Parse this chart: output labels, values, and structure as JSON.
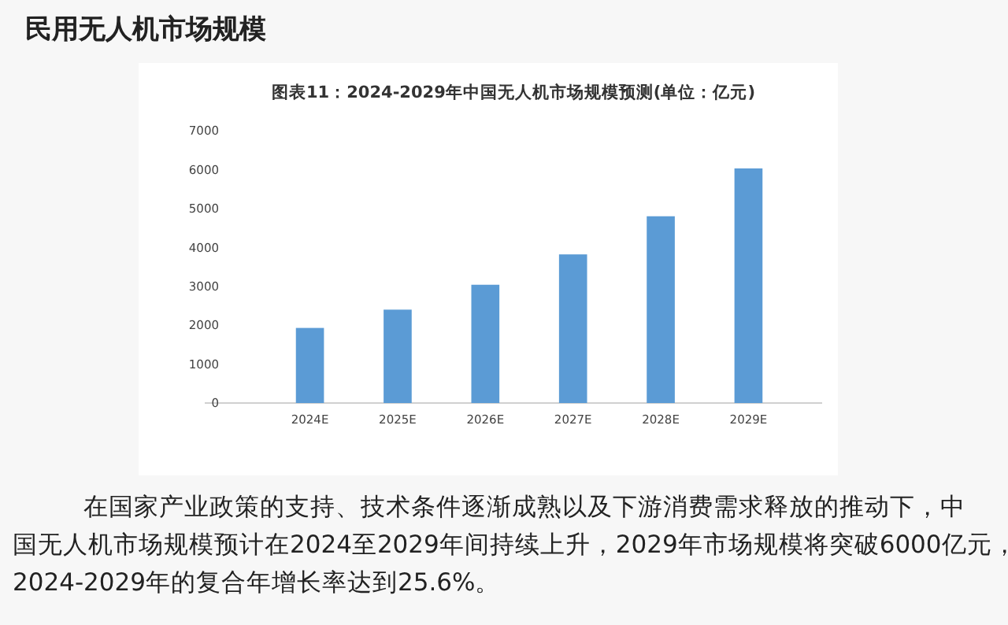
{
  "chart_data": {
    "type": "bar",
    "title": "民用无人机市场规模",
    "subtitle": "图表11：2024-2029年中国无人机市场规模预测(单位：亿元)",
    "categories": [
      "2024E",
      "2025E",
      "2026E",
      "2027E",
      "2028E",
      "2029E"
    ],
    "values": [
      1930,
      2400,
      3040,
      3820,
      4800,
      6030
    ],
    "color": "#5b9bd5",
    "ylim": [
      0,
      7000
    ],
    "yticks": [
      0,
      1000,
      2000,
      3000,
      4000,
      5000,
      6000,
      7000
    ],
    "grid": false,
    "annotations": [
      "在国家产业政策的支持、技术条件逐渐成熟以及下游消费需求释放的推动下，中国无人机市场规模预计在2024至2029年间持续上升，2029年市场规模将突破6000亿元，2024-2029年的复合年增长率达到25.6%。"
    ]
  }
}
